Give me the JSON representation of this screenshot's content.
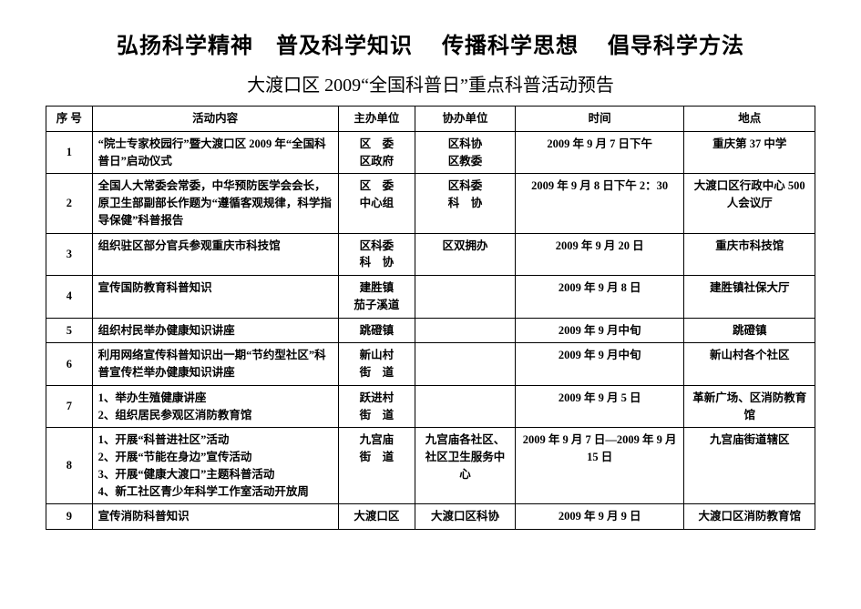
{
  "heading": "弘扬科学精神　普及科学知识　 传播科学思想　 倡导科学方法",
  "subtitle": "大渡口区 2009“全国科普日”重点科普活动预告",
  "columns": {
    "seq": "序 号",
    "activity": "活动内容",
    "host": "主办单位",
    "cohost": "协办单位",
    "time": "时间",
    "location": "地点"
  },
  "rows": [
    {
      "seq": "1",
      "activity": "“院士专家校园行”暨大渡口区 2009 年“全国科普日”启动仪式",
      "host": "区　委\n区政府",
      "cohost": "区科协\n区教委",
      "time": "2009 年 9 月 7 日下午",
      "location": "重庆第 37 中学"
    },
    {
      "seq": "2",
      "activity": "全国人大常委会常委，中华预防医学会会长，原卫生部副部长作题为“遵循客观规律，科学指导保健”科普报告",
      "host": "区　委\n中心组",
      "cohost": "区科委\n科　协",
      "time": "2009 年 9 月 8 日下午 2：30",
      "location": "大渡口区行政中心 500 人会议厅"
    },
    {
      "seq": "3",
      "activity": "组织驻区部分官兵参观重庆市科技馆",
      "host": "区科委\n科　协",
      "cohost": "区双拥办",
      "time": "2009 年 9 月 20 日",
      "location": "重庆市科技馆"
    },
    {
      "seq": "4",
      "activity": "宣传国防教育科普知识",
      "host": "建胜镇\n茄子溪道",
      "cohost": "",
      "time": "2009 年 9 月 8 日",
      "location": "建胜镇社保大厅"
    },
    {
      "seq": "5",
      "activity": "组织村民举办健康知识讲座",
      "host": "跳磴镇",
      "cohost": "",
      "time": "2009 年 9 月中旬",
      "location": "跳磴镇"
    },
    {
      "seq": "6",
      "activity": "利用网络宣传科普知识出一期“节约型社区”科普宣传栏举办健康知识讲座",
      "host": "新山村\n街　道",
      "cohost": "",
      "time": "2009 年 9 月中旬",
      "location": "新山村各个社区"
    },
    {
      "seq": "7",
      "activity": "1、举办生殖健康讲座\n2、组织居民参观区消防教育馆",
      "host": "跃进村\n街　道",
      "cohost": "",
      "time": "2009 年 9 月 5 日",
      "location": "革新广场、区消防教育馆"
    },
    {
      "seq": "8",
      "activity": "1、开展“科普进社区”活动\n2、开展“节能在身边”宣传活动\n3、开展“健康大渡口”主题科普活动\n4、新工社区青少年科学工作室活动开放周",
      "host": "九宫庙\n街　道",
      "cohost": "九宫庙各社区、社区卫生服务中心",
      "time": "2009 年 9 月 7 日—2009 年 9 月 15 日",
      "location": "九宫庙街道辖区"
    },
    {
      "seq": "9",
      "activity": "宣传消防科普知识",
      "host": "大渡口区",
      "cohost": "大渡口区科协",
      "time": "2009 年 9 月 9 日",
      "location": "大渡口区消防教育馆"
    }
  ]
}
